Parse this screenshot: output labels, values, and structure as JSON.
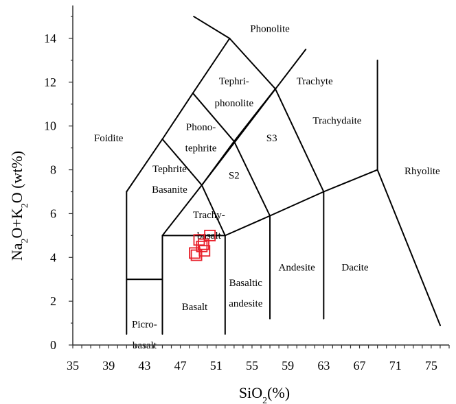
{
  "chart_data": {
    "type": "scatter",
    "xlabel": "SiO2(%)",
    "ylabel": "Na2O+K2O (wt%)",
    "xlim": [
      35,
      77
    ],
    "ylim": [
      0,
      15
    ],
    "x_ticks": [
      35,
      39,
      43,
      47,
      51,
      55,
      59,
      63,
      67,
      71,
      75
    ],
    "y_ticks": [
      0,
      2,
      4,
      6,
      8,
      10,
      12,
      14
    ],
    "grid": false,
    "marker": "open-square",
    "marker_color": "#e8202a",
    "series": [
      {
        "points": [
          {
            "x": 48.6,
            "y": 4.2
          },
          {
            "x": 48.8,
            "y": 4.1
          },
          {
            "x": 49.1,
            "y": 4.8
          },
          {
            "x": 49.4,
            "y": 4.5
          },
          {
            "x": 49.6,
            "y": 4.6
          },
          {
            "x": 49.7,
            "y": 4.3
          },
          {
            "x": 50.3,
            "y": 5.0
          }
        ]
      }
    ],
    "field_boundaries": [
      [
        [
          41,
          0.5
        ],
        [
          41,
          7
        ]
      ],
      [
        [
          41,
          3
        ],
        [
          45,
          3
        ]
      ],
      [
        [
          45,
          0.5
        ],
        [
          45,
          5
        ]
      ],
      [
        [
          45,
          5
        ],
        [
          52,
          5
        ]
      ],
      [
        [
          52,
          0.5
        ],
        [
          52,
          5
        ]
      ],
      [
        [
          52,
          5
        ],
        [
          57,
          5.9
        ]
      ],
      [
        [
          57,
          1.2
        ],
        [
          57,
          5.9
        ]
      ],
      [
        [
          57,
          5.9
        ],
        [
          63,
          7
        ]
      ],
      [
        [
          63,
          1.2
        ],
        [
          63,
          7
        ]
      ],
      [
        [
          63,
          7
        ],
        [
          69,
          8
        ]
      ],
      [
        [
          69,
          8
        ],
        [
          76,
          0.9
        ]
      ],
      [
        [
          69,
          8
        ],
        [
          69,
          13
        ]
      ],
      [
        [
          45,
          5
        ],
        [
          49.4,
          7.3
        ]
      ],
      [
        [
          49.4,
          7.3
        ],
        [
          52,
          5
        ]
      ],
      [
        [
          49.4,
          7.3
        ],
        [
          53,
          9.3
        ]
      ],
      [
        [
          53,
          9.3
        ],
        [
          57,
          5.9
        ]
      ],
      [
        [
          53,
          9.3
        ],
        [
          57.6,
          11.7
        ]
      ],
      [
        [
          57.6,
          11.7
        ],
        [
          63,
          7
        ]
      ],
      [
        [
          41,
          7
        ],
        [
          45,
          9.4
        ]
      ],
      [
        [
          45,
          9.4
        ],
        [
          48.4,
          11.5
        ]
      ],
      [
        [
          48.4,
          11.5
        ],
        [
          52.5,
          14
        ]
      ],
      [
        [
          52.5,
          14
        ],
        [
          57.6,
          11.7
        ]
      ],
      [
        [
          45,
          9.4
        ],
        [
          49.4,
          7.3
        ]
      ],
      [
        [
          48.4,
          11.5
        ],
        [
          53,
          9.3
        ]
      ],
      [
        [
          49.4,
          7.3
        ],
        [
          61,
          13.5
        ]
      ],
      [
        [
          52.5,
          14
        ],
        [
          48.5,
          15
        ]
      ]
    ],
    "field_labels": [
      {
        "lines": [
          "Phonolite"
        ],
        "x": 57,
        "y": 14.3
      },
      {
        "lines": [
          "Tephri-",
          "phonolite"
        ],
        "x": 53,
        "y": 11.9,
        "dy": 1.0
      },
      {
        "lines": [
          "Trachyte"
        ],
        "x": 62,
        "y": 11.9
      },
      {
        "lines": [
          "Foidite"
        ],
        "x": 39,
        "y": 9.3
      },
      {
        "lines": [
          "Phono-",
          "tephrite"
        ],
        "x": 49.3,
        "y": 9.8,
        "dy": 0.95
      },
      {
        "lines": [
          "S3"
        ],
        "x": 57.2,
        "y": 9.3
      },
      {
        "lines": [
          "Trachydaite"
        ],
        "x": 64.5,
        "y": 10.1
      },
      {
        "lines": [
          "Tephrite",
          "Basanite"
        ],
        "x": 45.8,
        "y": 7.9,
        "dy": 0.95
      },
      {
        "lines": [
          "S2"
        ],
        "x": 53,
        "y": 7.6
      },
      {
        "lines": [
          "Rhyolite"
        ],
        "x": 74,
        "y": 7.8
      },
      {
        "lines": [
          "Trachy-",
          "basalt"
        ],
        "x": 50.2,
        "y": 5.8,
        "dy": 0.95
      },
      {
        "lines": [
          "Andesite"
        ],
        "x": 60,
        "y": 3.4
      },
      {
        "lines": [
          "Dacite"
        ],
        "x": 66.5,
        "y": 3.4
      },
      {
        "lines": [
          "Basaltic",
          "andesite"
        ],
        "x": 54.3,
        "y": 2.7,
        "dy": 0.95
      },
      {
        "lines": [
          "Basalt"
        ],
        "x": 48.6,
        "y": 1.6
      },
      {
        "lines": [
          "Picro-",
          "basalt"
        ],
        "x": 43,
        "y": 0.8,
        "dy": 0.95
      }
    ]
  }
}
